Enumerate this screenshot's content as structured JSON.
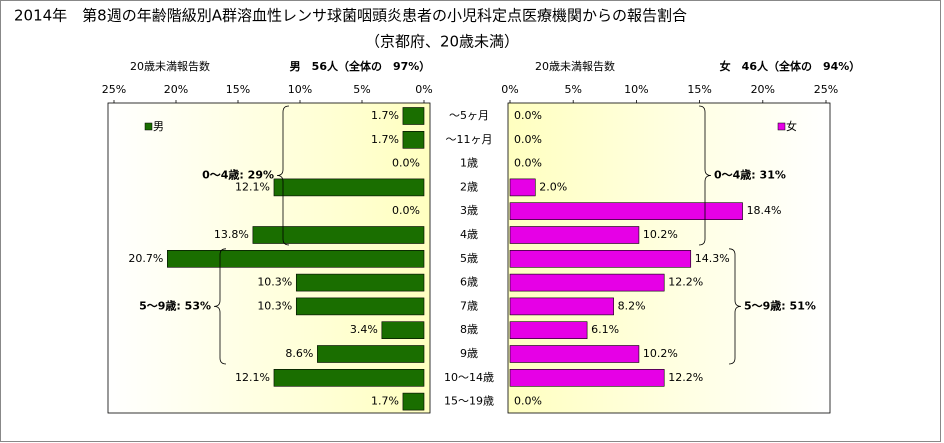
{
  "chart_data": {
    "type": "bar",
    "title": "2014年　第8週の年齢階級別A群溶血性レンサ球菌咽頭炎患者の小児科定点医療機関からの報告割合",
    "subtitle": "（京都府、20歳未満）",
    "categories": [
      "～5ヶ月",
      "～11ヶ月",
      "1歳",
      "2歳",
      "3歳",
      "4歳",
      "5歳",
      "6歳",
      "7歳",
      "8歳",
      "9歳",
      "10～14歳",
      "15～19歳"
    ],
    "left": {
      "axis_label": "20歳未満報告数",
      "header": "男　56人（全体の　97%）",
      "xlim": [
        0,
        25
      ],
      "xreverse": true,
      "xticks": [
        {
          "value": 25,
          "label": "25%"
        },
        {
          "value": 20,
          "label": "20%"
        },
        {
          "value": 15,
          "label": "15%"
        },
        {
          "value": 10,
          "label": "10%"
        },
        {
          "value": 5,
          "label": "5%"
        },
        {
          "value": 0,
          "label": "0%"
        }
      ],
      "series": [
        {
          "name": "男",
          "color": "#1a6e00",
          "values": [
            1.7,
            1.7,
            0.0,
            12.1,
            0.0,
            13.8,
            20.7,
            10.3,
            10.3,
            3.4,
            8.6,
            12.1,
            1.7
          ],
          "value_labels": [
            "1.7%",
            "1.7%",
            "0.0%",
            "12.1%",
            "0.0%",
            "13.8%",
            "20.7%",
            "10.3%",
            "10.3%",
            "3.4%",
            "8.6%",
            "12.1%",
            "1.7%"
          ]
        }
      ],
      "annotations": [
        "0～4歳: 29%",
        "5～9歳: 53%"
      ]
    },
    "right": {
      "axis_label": "20歳未満報告数",
      "header": "女　46人（全体の　94%）",
      "xlim": [
        0,
        25
      ],
      "xreverse": false,
      "xticks": [
        {
          "value": 0,
          "label": "0%"
        },
        {
          "value": 5,
          "label": "5%"
        },
        {
          "value": 10,
          "label": "10%"
        },
        {
          "value": 15,
          "label": "15%"
        },
        {
          "value": 20,
          "label": "20%"
        },
        {
          "value": 25,
          "label": "25%"
        }
      ],
      "series": [
        {
          "name": "女",
          "color": "#e600e6",
          "values": [
            0.0,
            0.0,
            0.0,
            2.0,
            18.4,
            10.2,
            14.3,
            12.2,
            8.2,
            6.1,
            10.2,
            12.2,
            0.0
          ],
          "value_labels": [
            "0.0%",
            "0.0%",
            "0.0%",
            "2.0%",
            "18.4%",
            "10.2%",
            "14.3%",
            "12.2%",
            "8.2%",
            "6.1%",
            "10.2%",
            "12.2%",
            "0.0%"
          ]
        }
      ],
      "annotations": [
        "0～4歳: 31%",
        "5～9歳: 51%"
      ]
    }
  }
}
